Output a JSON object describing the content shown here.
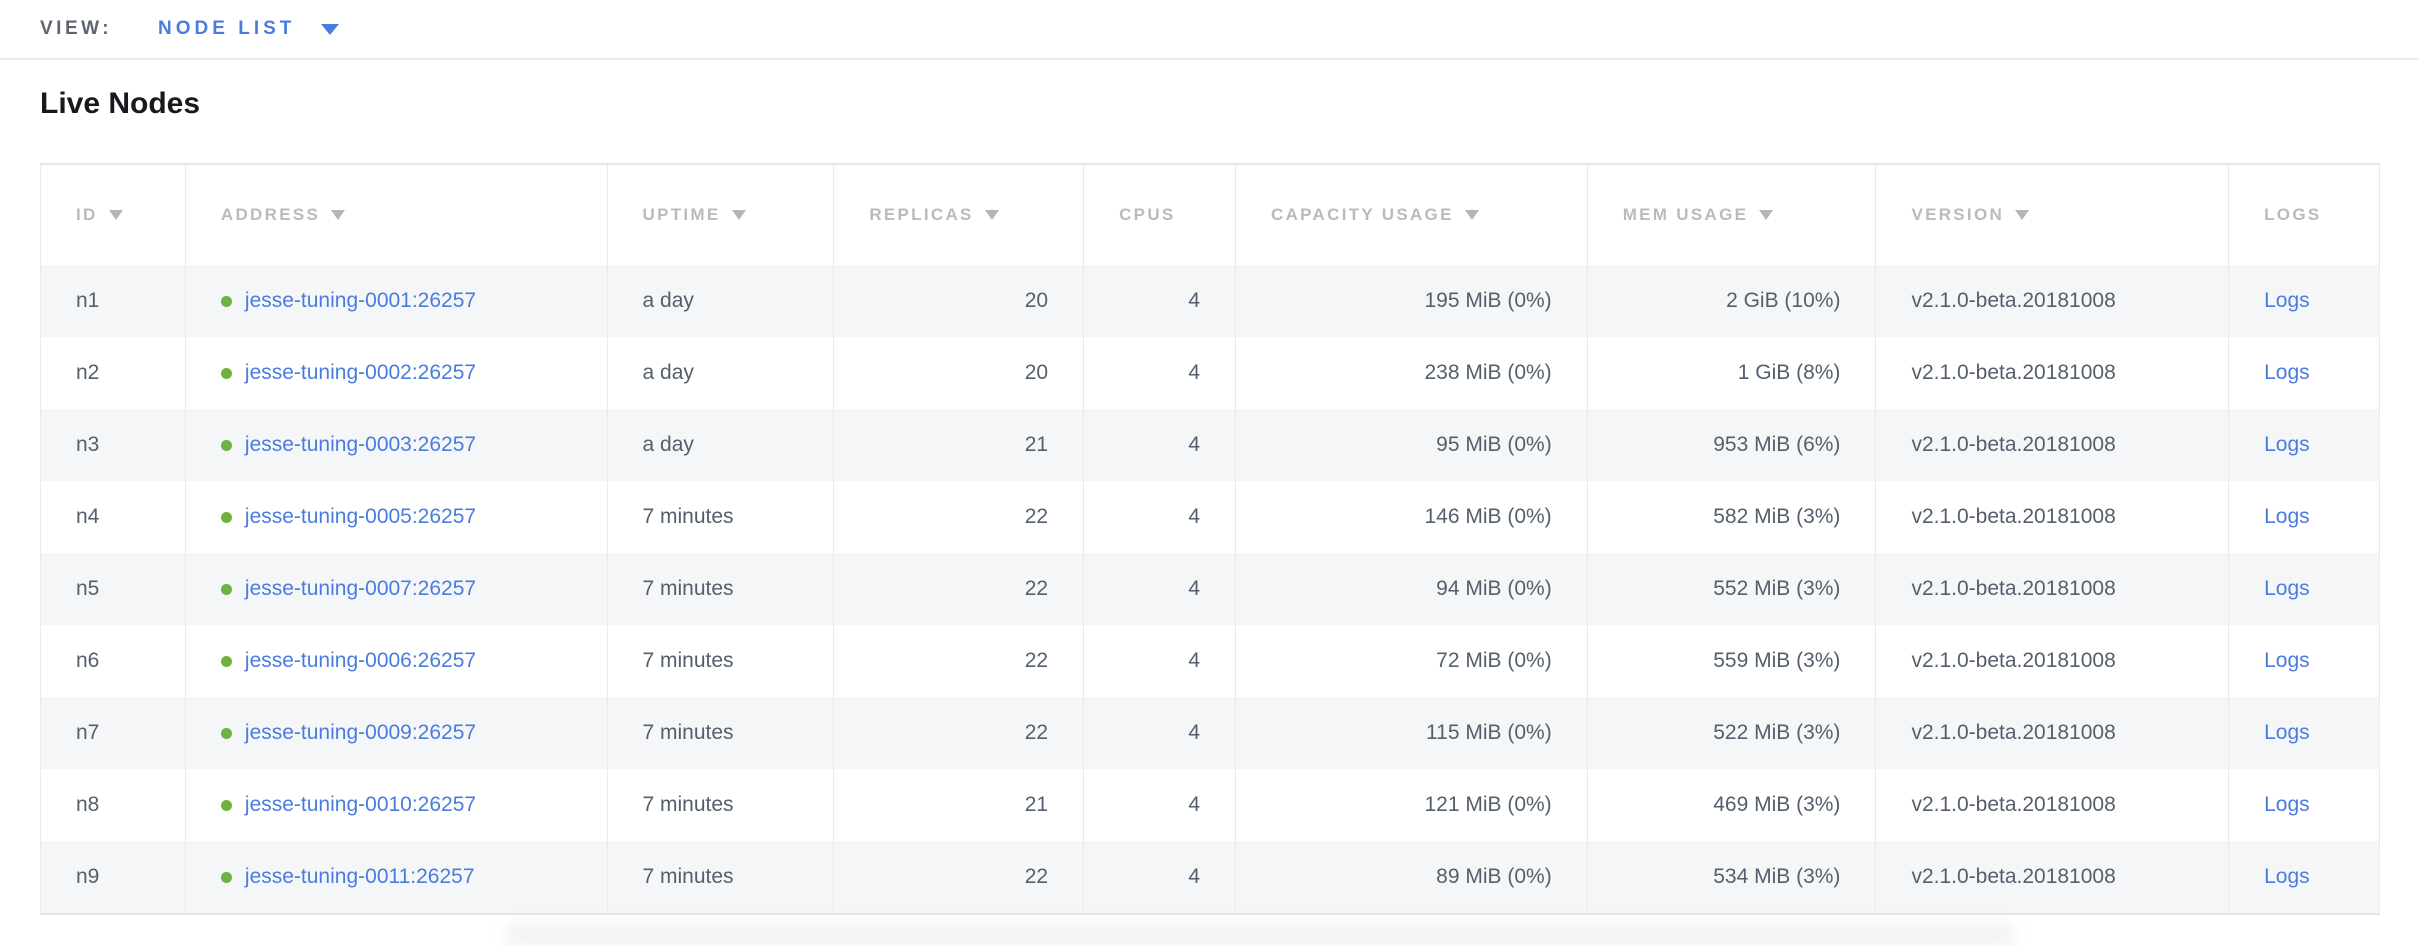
{
  "view_bar": {
    "label": "VIEW:",
    "selected_view": "NODE LIST"
  },
  "page": {
    "title": "Live Nodes"
  },
  "colors": {
    "accent_blue": "#4a7ce0",
    "status_green": "#6db33f",
    "header_gray": "#b7bbc0",
    "body_text": "#545f6e",
    "row_alt_gray": "#f5f6f7"
  },
  "table": {
    "columns": [
      {
        "key": "id",
        "label": "ID",
        "sortable": true,
        "align": "left"
      },
      {
        "key": "address",
        "label": "ADDRESS",
        "sortable": true,
        "align": "left"
      },
      {
        "key": "uptime",
        "label": "UPTIME",
        "sortable": true,
        "align": "left"
      },
      {
        "key": "replicas",
        "label": "REPLICAS",
        "sortable": true,
        "align": "right"
      },
      {
        "key": "cpus",
        "label": "CPUS",
        "sortable": false,
        "align": "right"
      },
      {
        "key": "capacity_usage",
        "label": "CAPACITY USAGE",
        "sortable": true,
        "align": "right"
      },
      {
        "key": "mem_usage",
        "label": "MEM USAGE",
        "sortable": true,
        "align": "right"
      },
      {
        "key": "version",
        "label": "VERSION",
        "sortable": true,
        "align": "left"
      },
      {
        "key": "logs",
        "label": "LOGS",
        "sortable": false,
        "align": "left"
      }
    ],
    "rows": [
      {
        "id": "n1",
        "address": "jesse-tuning-0001:26257",
        "status": "live",
        "uptime": "a day",
        "replicas": "20",
        "cpus": "4",
        "capacity_usage": "195 MiB (0%)",
        "mem_usage": "2 GiB (10%)",
        "version": "v2.1.0-beta.20181008",
        "logs": "Logs"
      },
      {
        "id": "n2",
        "address": "jesse-tuning-0002:26257",
        "status": "live",
        "uptime": "a day",
        "replicas": "20",
        "cpus": "4",
        "capacity_usage": "238 MiB (0%)",
        "mem_usage": "1 GiB (8%)",
        "version": "v2.1.0-beta.20181008",
        "logs": "Logs"
      },
      {
        "id": "n3",
        "address": "jesse-tuning-0003:26257",
        "status": "live",
        "uptime": "a day",
        "replicas": "21",
        "cpus": "4",
        "capacity_usage": "95 MiB (0%)",
        "mem_usage": "953 MiB (6%)",
        "version": "v2.1.0-beta.20181008",
        "logs": "Logs"
      },
      {
        "id": "n4",
        "address": "jesse-tuning-0005:26257",
        "status": "live",
        "uptime": "7 minutes",
        "replicas": "22",
        "cpus": "4",
        "capacity_usage": "146 MiB (0%)",
        "mem_usage": "582 MiB (3%)",
        "version": "v2.1.0-beta.20181008",
        "logs": "Logs"
      },
      {
        "id": "n5",
        "address": "jesse-tuning-0007:26257",
        "status": "live",
        "uptime": "7 minutes",
        "replicas": "22",
        "cpus": "4",
        "capacity_usage": "94 MiB (0%)",
        "mem_usage": "552 MiB (3%)",
        "version": "v2.1.0-beta.20181008",
        "logs": "Logs"
      },
      {
        "id": "n6",
        "address": "jesse-tuning-0006:26257",
        "status": "live",
        "uptime": "7 minutes",
        "replicas": "22",
        "cpus": "4",
        "capacity_usage": "72 MiB (0%)",
        "mem_usage": "559 MiB (3%)",
        "version": "v2.1.0-beta.20181008",
        "logs": "Logs"
      },
      {
        "id": "n7",
        "address": "jesse-tuning-0009:26257",
        "status": "live",
        "uptime": "7 minutes",
        "replicas": "22",
        "cpus": "4",
        "capacity_usage": "115 MiB (0%)",
        "mem_usage": "522 MiB (3%)",
        "version": "v2.1.0-beta.20181008",
        "logs": "Logs"
      },
      {
        "id": "n8",
        "address": "jesse-tuning-0010:26257",
        "status": "live",
        "uptime": "7 minutes",
        "replicas": "21",
        "cpus": "4",
        "capacity_usage": "121 MiB (0%)",
        "mem_usage": "469 MiB (3%)",
        "version": "v2.1.0-beta.20181008",
        "logs": "Logs"
      },
      {
        "id": "n9",
        "address": "jesse-tuning-0011:26257",
        "status": "live",
        "uptime": "7 minutes",
        "replicas": "22",
        "cpus": "4",
        "capacity_usage": "89 MiB (0%)",
        "mem_usage": "534 MiB (3%)",
        "version": "v2.1.0-beta.20181008",
        "logs": "Logs"
      }
    ]
  }
}
